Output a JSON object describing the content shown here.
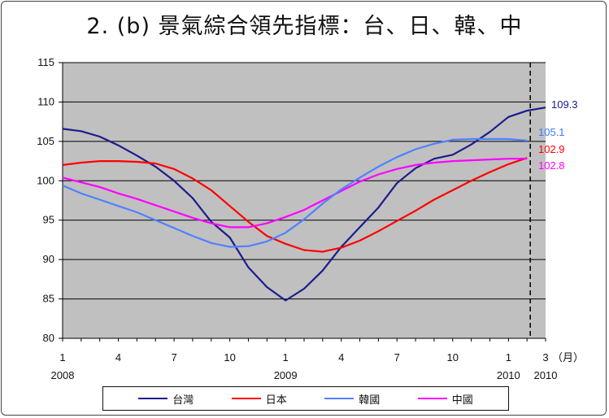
{
  "title": "2. (b) 景氣綜合領先指標：台、日、韓、中",
  "chart_data": {
    "type": "line",
    "ylim": [
      80,
      115
    ],
    "yticks": [
      80,
      85,
      90,
      95,
      100,
      105,
      110,
      115
    ],
    "grid": "horizontal",
    "x_tick_labels": [
      {
        "month": "1",
        "year": "2008",
        "idx": 0
      },
      {
        "month": "4",
        "year": "",
        "idx": 3
      },
      {
        "month": "7",
        "year": "",
        "idx": 6
      },
      {
        "month": "10",
        "year": "",
        "idx": 9
      },
      {
        "month": "1",
        "year": "2009",
        "idx": 12
      },
      {
        "month": "4",
        "year": "",
        "idx": 15
      },
      {
        "month": "7",
        "year": "",
        "idx": 18
      },
      {
        "month": "10",
        "year": "",
        "idx": 21
      },
      {
        "month": "1",
        "year": "2010",
        "idx": 24
      }
    ],
    "forecast_tick": {
      "month": "3",
      "unit": "（月）",
      "year": "2010",
      "idx": 26
    },
    "forecast_start_idx": 25,
    "series": [
      {
        "name": "台灣",
        "color": "#1c1c8c",
        "end_label": "109.3",
        "end_color": "#1c1c8c",
        "values": [
          106.6,
          106.3,
          105.6,
          104.5,
          103.2,
          101.8,
          100.0,
          97.8,
          94.8,
          92.8,
          89.0,
          86.5,
          84.8,
          86.3,
          88.6,
          91.6,
          94.1,
          96.6,
          99.7,
          101.6,
          102.8,
          103.3,
          104.6,
          106.2,
          108.1,
          108.9,
          109.3
        ]
      },
      {
        "name": "日本",
        "color": "#ff0000",
        "end_label": "102.9",
        "end_color": "#ff0000",
        "values": [
          102.0,
          102.3,
          102.5,
          102.5,
          102.4,
          102.2,
          101.5,
          100.3,
          98.8,
          96.8,
          94.8,
          93.0,
          92.0,
          91.2,
          91.0,
          91.5,
          92.4,
          93.6,
          94.9,
          96.2,
          97.6,
          98.8,
          100.0,
          101.1,
          102.1,
          102.9
        ]
      },
      {
        "name": "韓國",
        "color": "#4f81ff",
        "end_label": "105.1",
        "end_color": "#3b78ff",
        "values": [
          99.4,
          98.4,
          97.6,
          96.8,
          96.0,
          95.0,
          94.0,
          93.0,
          92.1,
          91.6,
          91.7,
          92.3,
          93.4,
          95.1,
          97.1,
          98.9,
          100.4,
          101.8,
          103.0,
          104.0,
          104.7,
          105.2,
          105.3,
          105.3,
          105.3,
          105.1
        ]
      },
      {
        "name": "中國",
        "color": "#ff00ff",
        "end_label": "102.8",
        "end_color": "#ff00ff",
        "values": [
          100.4,
          99.8,
          99.2,
          98.4,
          97.7,
          96.9,
          96.1,
          95.3,
          94.6,
          94.1,
          94.1,
          94.6,
          95.4,
          96.3,
          97.5,
          98.7,
          99.9,
          100.8,
          101.5,
          102.0,
          102.3,
          102.5,
          102.6,
          102.7,
          102.8,
          102.8
        ]
      }
    ]
  }
}
